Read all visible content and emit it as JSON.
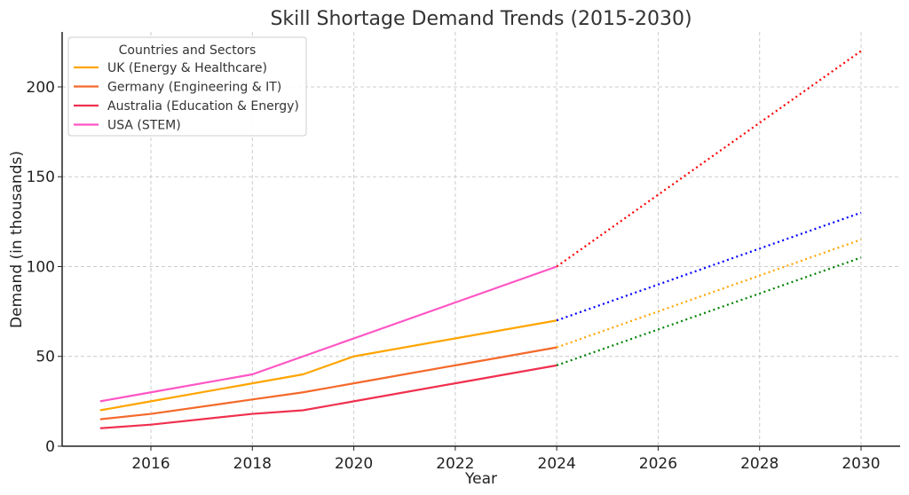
{
  "chart_data": {
    "type": "line",
    "title": "Skill Shortage Demand Trends (2015-2030)",
    "xlabel": "Year",
    "ylabel": "Demand (in thousands)",
    "xlim": [
      2014.25,
      2030.77
    ],
    "ylim": [
      0,
      230.6
    ],
    "xticks": [
      2016,
      2018,
      2020,
      2022,
      2024,
      2026,
      2028,
      2030
    ],
    "yticks": [
      0,
      50,
      100,
      150,
      200
    ],
    "grid": true,
    "legend": {
      "title": "Countries and Sectors",
      "placement": "top-left"
    },
    "series": [
      {
        "name": "UK (Energy & Healthcare)",
        "color": "#FFA500",
        "style": "solid",
        "x": [
          2015,
          2016,
          2018,
          2019,
          2020,
          2022,
          2024
        ],
        "y": [
          20,
          25,
          35,
          40,
          50,
          60,
          70
        ]
      },
      {
        "name": "Germany (Engineering & IT)",
        "color": "#F4692A",
        "style": "solid",
        "x": [
          2015,
          2016,
          2018,
          2019,
          2020,
          2022,
          2024
        ],
        "y": [
          15,
          18,
          26,
          30,
          35,
          45,
          55
        ]
      },
      {
        "name": "Australia (Education & Energy)",
        "color": "#F0304F",
        "style": "solid",
        "x": [
          2015,
          2016,
          2018,
          2019,
          2020,
          2022,
          2024
        ],
        "y": [
          10,
          12,
          18,
          20,
          25,
          35,
          45
        ]
      },
      {
        "name": "USA (STEM)",
        "color": "#FF55C4",
        "style": "solid",
        "x": [
          2015,
          2016,
          2018,
          2019,
          2020,
          2022,
          2024
        ],
        "y": [
          25,
          30,
          40,
          50,
          60,
          80,
          100
        ]
      }
    ],
    "projections": [
      {
        "color": "#FF0000",
        "style": "dotted",
        "x": [
          2024,
          2026,
          2028,
          2030
        ],
        "y": [
          100,
          140,
          180,
          220
        ]
      },
      {
        "color": "#0000FF",
        "style": "dotted",
        "x": [
          2024,
          2026,
          2028,
          2030
        ],
        "y": [
          70,
          90,
          110,
          130
        ]
      },
      {
        "color": "#FFA500",
        "style": "dotted",
        "x": [
          2024,
          2026,
          2028,
          2030
        ],
        "y": [
          55,
          75,
          95,
          115
        ]
      },
      {
        "color": "#008000",
        "style": "dotted",
        "x": [
          2024,
          2026,
          2028,
          2030
        ],
        "y": [
          45,
          65,
          85,
          105
        ]
      }
    ]
  }
}
